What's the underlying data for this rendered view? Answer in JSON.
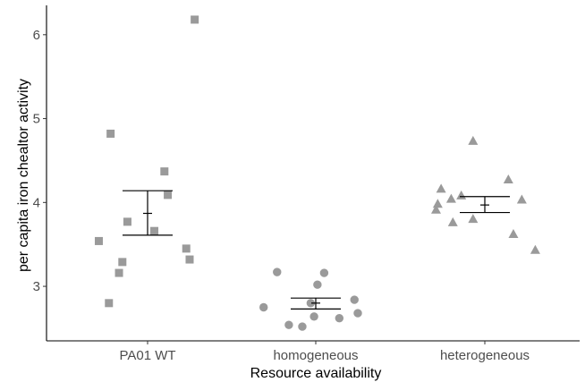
{
  "chart_data": {
    "type": "scatter",
    "xlabel": "Resource availability",
    "ylabel": "per capita iron chealtor activity",
    "categories": [
      "PA01 WT",
      "homogeneous",
      "heterogeneous"
    ],
    "ylim": [
      2.35,
      6.35
    ],
    "yticks": [
      3,
      4,
      5,
      6
    ],
    "grid": false,
    "legend": "none",
    "point_color": "#9a9a9a",
    "series": [
      {
        "category": "PA01 WT",
        "marker": "square",
        "points": [
          {
            "x": -0.22,
            "y": 4.82
          },
          {
            "x": 0.28,
            "y": 6.18
          },
          {
            "x": 0.1,
            "y": 4.37
          },
          {
            "x": 0.12,
            "y": 4.09
          },
          {
            "x": -0.12,
            "y": 3.77
          },
          {
            "x": 0.04,
            "y": 3.66
          },
          {
            "x": -0.29,
            "y": 3.54
          },
          {
            "x": 0.23,
            "y": 3.45
          },
          {
            "x": -0.15,
            "y": 3.29
          },
          {
            "x": 0.25,
            "y": 3.32
          },
          {
            "x": -0.17,
            "y": 3.16
          },
          {
            "x": -0.23,
            "y": 2.8
          }
        ],
        "mean": 3.87,
        "err_low": 3.61,
        "err_high": 4.14
      },
      {
        "category": "homogeneous",
        "marker": "circle",
        "points": [
          {
            "x": -0.23,
            "y": 3.17
          },
          {
            "x": 0.05,
            "y": 3.16
          },
          {
            "x": 0.01,
            "y": 3.02
          },
          {
            "x": 0.23,
            "y": 2.84
          },
          {
            "x": -0.03,
            "y": 2.8
          },
          {
            "x": -0.31,
            "y": 2.75
          },
          {
            "x": 0.25,
            "y": 2.68
          },
          {
            "x": -0.01,
            "y": 2.64
          },
          {
            "x": 0.14,
            "y": 2.62
          },
          {
            "x": -0.16,
            "y": 2.54
          },
          {
            "x": -0.08,
            "y": 2.52
          }
        ],
        "mean": 2.8,
        "err_low": 2.73,
        "err_high": 2.86
      },
      {
        "category": "heterogeneous",
        "marker": "triangle",
        "points": [
          {
            "x": -0.07,
            "y": 4.73
          },
          {
            "x": 0.14,
            "y": 4.27
          },
          {
            "x": -0.26,
            "y": 4.16
          },
          {
            "x": -0.14,
            "y": 4.08
          },
          {
            "x": -0.2,
            "y": 4.04
          },
          {
            "x": 0.22,
            "y": 4.03
          },
          {
            "x": -0.28,
            "y": 3.98
          },
          {
            "x": -0.29,
            "y": 3.91
          },
          {
            "x": -0.07,
            "y": 3.8
          },
          {
            "x": -0.19,
            "y": 3.76
          },
          {
            "x": 0.17,
            "y": 3.62
          },
          {
            "x": 0.3,
            "y": 3.43
          }
        ],
        "mean": 3.97,
        "err_low": 3.88,
        "err_high": 4.07
      }
    ]
  }
}
